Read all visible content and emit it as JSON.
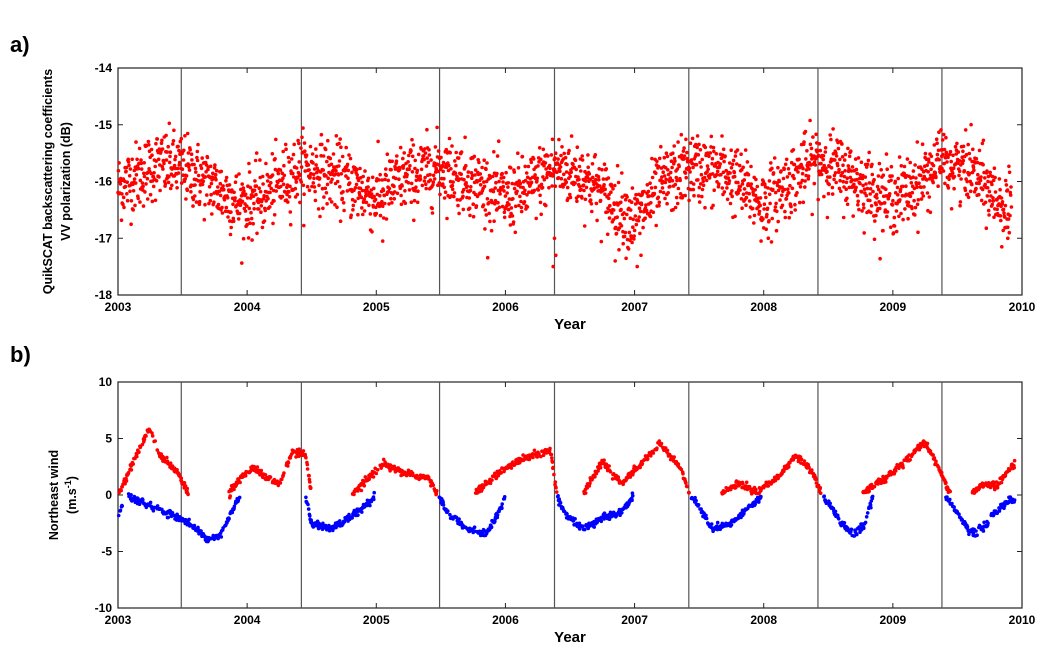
{
  "chart_data": [
    {
      "type": "scatter",
      "panel_label": "a)",
      "xlabel": "Year",
      "ylabel_lines": [
        "QuikSCAT backscattering coefficients",
        "VV polarization (dB)"
      ],
      "xlim": [
        2003,
        2010
      ],
      "ylim": [
        -18,
        -14
      ],
      "x_ticks": [
        2003,
        2004,
        2005,
        2006,
        2007,
        2008,
        2009,
        2010
      ],
      "y_ticks": [
        -14,
        -15,
        -16,
        -17,
        -18
      ],
      "grid": false,
      "vertical_lines": [
        2003.49,
        2004.42,
        2005.49,
        2006.38,
        2007.42,
        2008.42,
        2009.38
      ],
      "series": [
        {
          "color": "#ff0000",
          "model": {
            "daily": true,
            "start": 2003.0,
            "end": 2009.92,
            "seasonal": [
              [
                2003.0,
                -16.1
              ],
              [
                2003.3,
                -15.7
              ],
              [
                2003.5,
                -15.75
              ],
              [
                2003.75,
                -16.1
              ],
              [
                2003.95,
                -16.4
              ],
              [
                2004.1,
                -16.3
              ],
              [
                2004.42,
                -15.75
              ],
              [
                2004.7,
                -15.9
              ],
              [
                2005.0,
                -16.3
              ],
              [
                2005.2,
                -15.95
              ],
              [
                2005.5,
                -15.75
              ],
              [
                2005.75,
                -16.0
              ],
              [
                2006.0,
                -16.3
              ],
              [
                2006.2,
                -16.1
              ],
              [
                2006.38,
                -15.75
              ],
              [
                2006.6,
                -15.9
              ],
              [
                2006.85,
                -16.4
              ],
              [
                2007.0,
                -16.7
              ],
              [
                2007.2,
                -16.1
              ],
              [
                2007.42,
                -15.75
              ],
              [
                2007.7,
                -15.85
              ],
              [
                2007.9,
                -16.2
              ],
              [
                2008.0,
                -16.4
              ],
              [
                2008.2,
                -16.0
              ],
              [
                2008.42,
                -15.6
              ],
              [
                2008.7,
                -15.95
              ],
              [
                2008.95,
                -16.3
              ],
              [
                2009.1,
                -16.2
              ],
              [
                2009.38,
                -15.65
              ],
              [
                2009.6,
                -15.8
              ],
              [
                2009.92,
                -16.6
              ]
            ],
            "scatter": 0.3,
            "outliers": [
              [
                2006.38,
                -17.0
              ],
              [
                2006.39,
                -17.3
              ],
              [
                2006.37,
                -17.5
              ],
              [
                2006.85,
                -17.4
              ],
              [
                2007.02,
                -17.5
              ],
              [
                2007.05,
                -17.3
              ],
              [
                2005.05,
                -17.05
              ],
              [
                2007.98,
                -17.05
              ],
              [
                2009.89,
                -17.0
              ]
            ]
          }
        }
      ]
    },
    {
      "type": "scatter",
      "panel_label": "b)",
      "xlabel": "Year",
      "ylabel_lines": [
        "Northeast wind",
        "(m.s-1)"
      ],
      "xlim": [
        2003,
        2010
      ],
      "ylim": [
        -10,
        10
      ],
      "x_ticks": [
        2003,
        2004,
        2005,
        2006,
        2007,
        2008,
        2009,
        2010
      ],
      "y_ticks": [
        10,
        5,
        0,
        -5,
        -10
      ],
      "grid": false,
      "vertical_lines": [
        2003.49,
        2004.42,
        2005.49,
        2006.38,
        2007.42,
        2008.42,
        2009.38
      ],
      "series": [
        {
          "color": "#ff0000",
          "condition": "positive values",
          "model": {
            "seasonal": [
              [
                2003.0,
                0.0
              ],
              [
                2003.08,
                2.0
              ],
              [
                2003.18,
                4.5
              ],
              [
                2003.25,
                6.0
              ],
              [
                2003.32,
                3.5
              ],
              [
                2003.45,
                2.2
              ],
              [
                2003.55,
                0.0
              ],
              [
                2003.85,
                0.0
              ],
              [
                2003.95,
                1.5
              ],
              [
                2004.05,
                2.5
              ],
              [
                2004.15,
                1.5
              ],
              [
                2004.25,
                1.0
              ],
              [
                2004.35,
                3.8
              ],
              [
                2004.45,
                3.5
              ],
              [
                2004.5,
                0.0
              ],
              [
                2004.8,
                0.0
              ],
              [
                2004.9,
                1.0
              ],
              [
                2005.05,
                2.8
              ],
              [
                2005.2,
                2.0
              ],
              [
                2005.4,
                1.5
              ],
              [
                2005.48,
                0.0
              ],
              [
                2005.75,
                0.0
              ],
              [
                2005.9,
                1.5
              ],
              [
                2006.05,
                2.8
              ],
              [
                2006.2,
                3.5
              ],
              [
                2006.35,
                4.0
              ],
              [
                2006.4,
                0.0
              ],
              [
                2006.6,
                0.0
              ],
              [
                2006.75,
                3.0
              ],
              [
                2006.9,
                1.0
              ],
              [
                2007.05,
                2.8
              ],
              [
                2007.2,
                4.5
              ],
              [
                2007.35,
                2.5
              ],
              [
                2007.43,
                0.0
              ],
              [
                2007.65,
                0.0
              ],
              [
                2007.8,
                1.0
              ],
              [
                2007.95,
                0.3
              ],
              [
                2008.1,
                1.5
              ],
              [
                2008.25,
                3.5
              ],
              [
                2008.38,
                2.0
              ],
              [
                2008.45,
                0.0
              ],
              [
                2008.75,
                0.0
              ],
              [
                2008.85,
                0.8
              ],
              [
                2008.95,
                1.5
              ],
              [
                2009.1,
                3.0
              ],
              [
                2009.25,
                4.8
              ],
              [
                2009.37,
                2.0
              ],
              [
                2009.45,
                0.0
              ],
              [
                2009.6,
                0.0
              ],
              [
                2009.7,
                1.0
              ],
              [
                2009.8,
                0.8
              ],
              [
                2009.92,
                2.5
              ]
            ]
          }
        },
        {
          "color": "#0000ff",
          "condition": "negative values",
          "model": {
            "seasonal": [
              [
                2003.0,
                -2.0
              ],
              [
                2003.05,
                0.0
              ],
              [
                2003.55,
                -2.5
              ],
              [
                2003.7,
                -4.0
              ],
              [
                2003.8,
                -3.5
              ],
              [
                2003.9,
                -1.0
              ],
              [
                2003.95,
                0.0
              ],
              [
                2004.45,
                0.0
              ],
              [
                2004.5,
                -2.5
              ],
              [
                2004.65,
                -3.0
              ],
              [
                2004.8,
                -2.0
              ],
              [
                2004.95,
                -0.5
              ],
              [
                2005.0,
                0.0
              ],
              [
                2005.48,
                0.0
              ],
              [
                2005.55,
                -1.5
              ],
              [
                2005.7,
                -3.0
              ],
              [
                2005.85,
                -3.5
              ],
              [
                2005.95,
                -1.5
              ],
              [
                2006.0,
                0.0
              ],
              [
                2006.4,
                0.0
              ],
              [
                2006.45,
                -1.5
              ],
              [
                2006.6,
                -3.0
              ],
              [
                2006.75,
                -2.0
              ],
              [
                2006.9,
                -1.5
              ],
              [
                2007.0,
                0.0
              ],
              [
                2007.43,
                0.0
              ],
              [
                2007.5,
                -1.0
              ],
              [
                2007.6,
                -3.0
              ],
              [
                2007.75,
                -2.5
              ],
              [
                2007.9,
                -1.0
              ],
              [
                2008.0,
                0.0
              ],
              [
                2008.45,
                0.0
              ],
              [
                2008.52,
                -1.0
              ],
              [
                2008.6,
                -2.5
              ],
              [
                2008.7,
                -3.5
              ],
              [
                2008.78,
                -2.5
              ],
              [
                2008.85,
                0.0
              ],
              [
                2009.4,
                0.0
              ],
              [
                2009.5,
                -1.5
              ],
              [
                2009.6,
                -3.5
              ],
              [
                2009.7,
                -3.0
              ],
              [
                2009.8,
                -1.5
              ],
              [
                2009.9,
                -0.5
              ]
            ]
          }
        }
      ]
    }
  ]
}
